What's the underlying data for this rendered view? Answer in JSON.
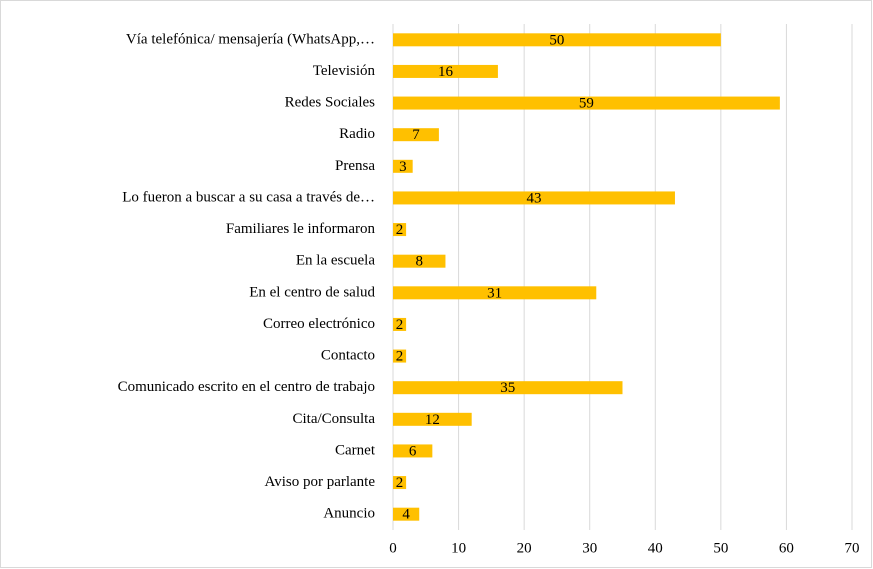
{
  "chart_data": {
    "type": "bar",
    "orientation": "horizontal",
    "categories": [
      "Vía telefónica/ mensajería (WhatsApp,…",
      "Televisión",
      "Redes Sociales",
      "Radio",
      "Prensa",
      "Lo fueron a buscar a su casa a través de…",
      "Familiares le informaron",
      "En la escuela",
      "En el centro de salud",
      "Correo electrónico",
      "Contacto",
      "Comunicado escrito en el centro de trabajo",
      "Cita/Consulta",
      "Carnet",
      "Aviso por parlante",
      "Anuncio"
    ],
    "values": [
      50,
      16,
      59,
      7,
      3,
      43,
      2,
      8,
      31,
      2,
      2,
      35,
      12,
      6,
      2,
      4
    ],
    "color": "#ffc000",
    "xlim": [
      0,
      70
    ],
    "xticks": [
      0,
      10,
      20,
      30,
      40,
      50,
      60,
      70
    ],
    "grid": true
  }
}
